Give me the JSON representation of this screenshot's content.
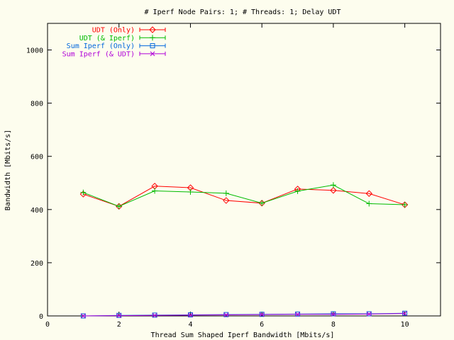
{
  "chart_data": {
    "type": "line",
    "title": "# Iperf Node Pairs: 1; # Threads: 1; Delay UDT",
    "xlabel": "Thread Sum Shaped Iperf Bandwidth [Mbits/s]",
    "ylabel": "Bandwidth [Mbits/s]",
    "xlim": [
      0,
      11
    ],
    "ylim": [
      0,
      1100
    ],
    "xticks": [
      "0",
      "2",
      "4",
      "6",
      "8",
      "10"
    ],
    "yticks": [
      "0",
      "200",
      "400",
      "600",
      "800",
      "1000"
    ],
    "xtick_values": [
      0,
      2,
      4,
      6,
      8,
      10
    ],
    "ytick_values": [
      0,
      200,
      400,
      600,
      800,
      1000
    ],
    "grid": false,
    "legend_position": "top-left",
    "x": [
      1,
      2,
      3,
      4,
      5,
      6,
      7,
      8,
      9,
      10
    ],
    "series": [
      {
        "name": "UDT (Only)",
        "color": "#ff0000",
        "marker": "diamond",
        "values": [
          458,
          412,
          488,
          482,
          434,
          424,
          477,
          472,
          460,
          418
        ]
      },
      {
        "name": "UDT (& Iperf)",
        "color": "#00bb00",
        "marker": "plus",
        "values": [
          464,
          412,
          470,
          466,
          461,
          424,
          469,
          492,
          422,
          418
        ]
      },
      {
        "name": "Sum Iperf (Only)",
        "color": "#0066dd",
        "marker": "square",
        "values": [
          0,
          2,
          3,
          4,
          5,
          6,
          7,
          8,
          8,
          10
        ]
      },
      {
        "name": "Sum Iperf (& UDT)",
        "color": "#b000d8",
        "marker": "cross",
        "values": [
          0,
          1,
          2,
          3,
          4,
          5,
          6,
          6,
          7,
          9
        ]
      }
    ]
  }
}
